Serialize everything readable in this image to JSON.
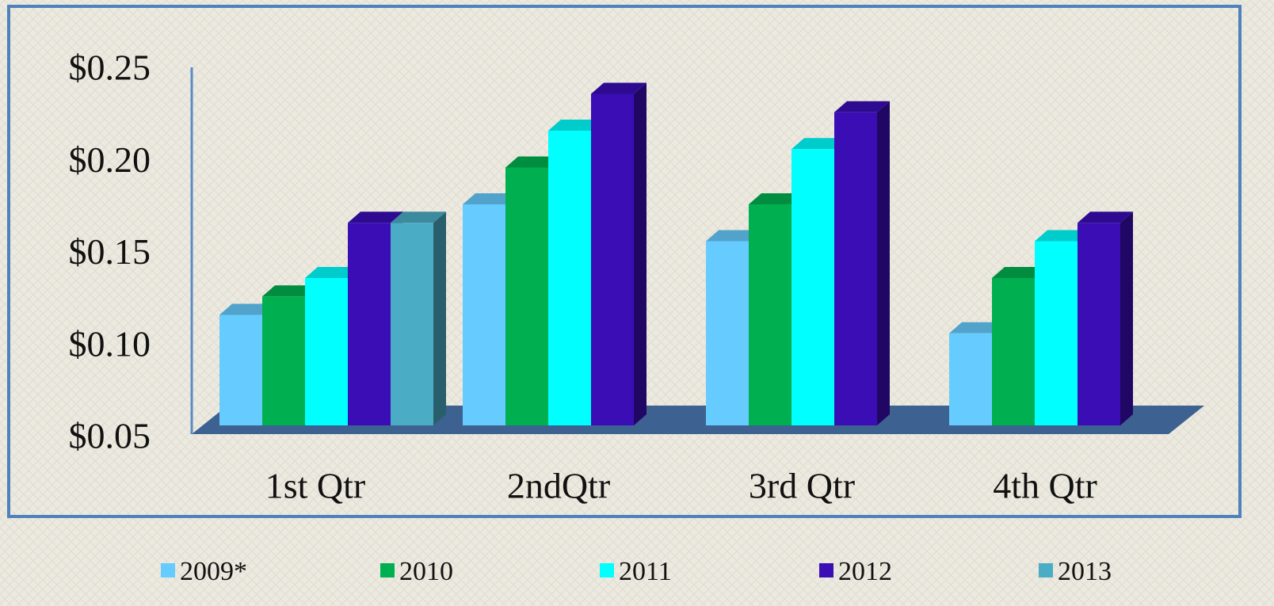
{
  "chart_data": {
    "type": "bar3d",
    "categories": [
      "1st Qtr",
      "2ndQtr",
      "3rd Qtr",
      "4th Qtr"
    ],
    "series": [
      {
        "name": "2009*",
        "color": "#66ccff",
        "values": [
          0.11,
          0.17,
          0.15,
          0.1
        ]
      },
      {
        "name": "2010",
        "color": "#00b050",
        "values": [
          0.12,
          0.19,
          0.17,
          0.13
        ]
      },
      {
        "name": "2011",
        "color": "#00ffff",
        "values": [
          0.13,
          0.21,
          0.2,
          0.15
        ]
      },
      {
        "name": "2012",
        "color": "#3a0db5",
        "values": [
          0.16,
          0.23,
          0.22,
          0.16
        ]
      },
      {
        "name": "2013",
        "color": "#4bacc6",
        "values": [
          0.16,
          null,
          null,
          null
        ]
      }
    ],
    "ylim": [
      0.05,
      0.25
    ],
    "yticks": [
      {
        "value": 0.05,
        "label": "$0.05"
      },
      {
        "value": 0.1,
        "label": "$0.10"
      },
      {
        "value": 0.15,
        "label": "$0.15"
      },
      {
        "value": 0.2,
        "label": "$0.20"
      },
      {
        "value": 0.25,
        "label": "$0.25"
      }
    ],
    "legend": "bottom"
  }
}
